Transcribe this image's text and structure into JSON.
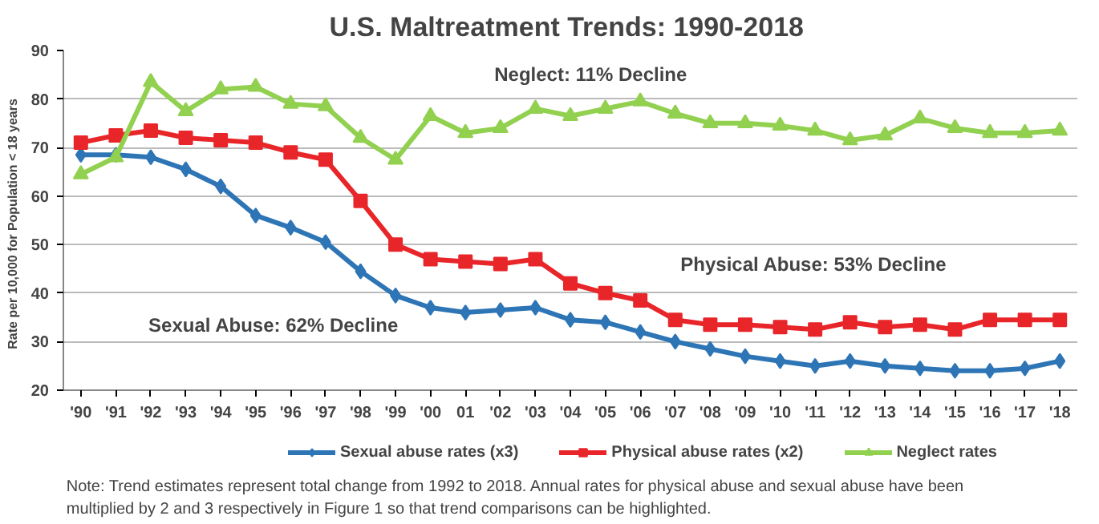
{
  "chart_data": {
    "type": "line",
    "title": "U.S. Maltreatment Trends:  1990-2018",
    "ylabel": "Rate per 10,000  for Population  < 18 years",
    "categories": [
      "'90",
      "'91",
      "'92",
      "'93",
      "'94",
      "'95",
      "'96",
      "'97",
      "'98",
      "'99",
      "'00",
      "01",
      "'02",
      "'03",
      "'04",
      "'05",
      "'06",
      "'07",
      "'08",
      "'09",
      "'10",
      "'11",
      "'12",
      "'13",
      "'14",
      "'15",
      "'16",
      "'17",
      "'18"
    ],
    "series": [
      {
        "name": "Sexual abuse rates (x3)",
        "color": "#2e75b6",
        "marker": "diamond",
        "values": [
          68.5,
          68.5,
          68,
          65.5,
          62,
          56,
          53.5,
          50.5,
          44.5,
          39.5,
          37,
          36,
          36.5,
          37,
          34.5,
          34,
          32,
          30,
          28.5,
          27,
          26,
          25,
          26,
          25,
          24.5,
          24,
          24,
          24.5,
          26
        ]
      },
      {
        "name": "Physical abuse rates (x2)",
        "color": "#e8262a",
        "marker": "square",
        "values": [
          71,
          72.5,
          73.5,
          72,
          71.5,
          71,
          69,
          67.5,
          59,
          50,
          47,
          46.5,
          46,
          47,
          42,
          40,
          38.5,
          34.5,
          33.5,
          33.5,
          33,
          32.5,
          34,
          33,
          33.5,
          32.5,
          34.5,
          34.5,
          34.5
        ]
      },
      {
        "name": "Neglect rates",
        "color": "#92d050",
        "marker": "triangle",
        "values": [
          64.5,
          68,
          83.5,
          77.5,
          82,
          82.5,
          79,
          78.5,
          72,
          67.5,
          76.5,
          73,
          74,
          78,
          76.5,
          78,
          79.5,
          77,
          75,
          75,
          74.5,
          73.5,
          71.5,
          72.5,
          76,
          74,
          73,
          73,
          73.5
        ]
      }
    ],
    "ylim": [
      20,
      90
    ],
    "yticks": [
      20,
      30,
      40,
      50,
      60,
      70,
      80,
      90
    ],
    "grid": "y",
    "legend": "bottom",
    "line_style": "solid",
    "annotations": [
      "Neglect: 11% Decline",
      "Physical Abuse: 53% Decline",
      "Sexual Abuse:  62% Decline",
      "Note: Trend estimates represent total change from 1992 to 2018. Annual rates for physical abuse and sexual abuse have been multiplied by 2 and 3 respectively in Figure 1 so that trend comparisons can be highlighted."
    ]
  }
}
